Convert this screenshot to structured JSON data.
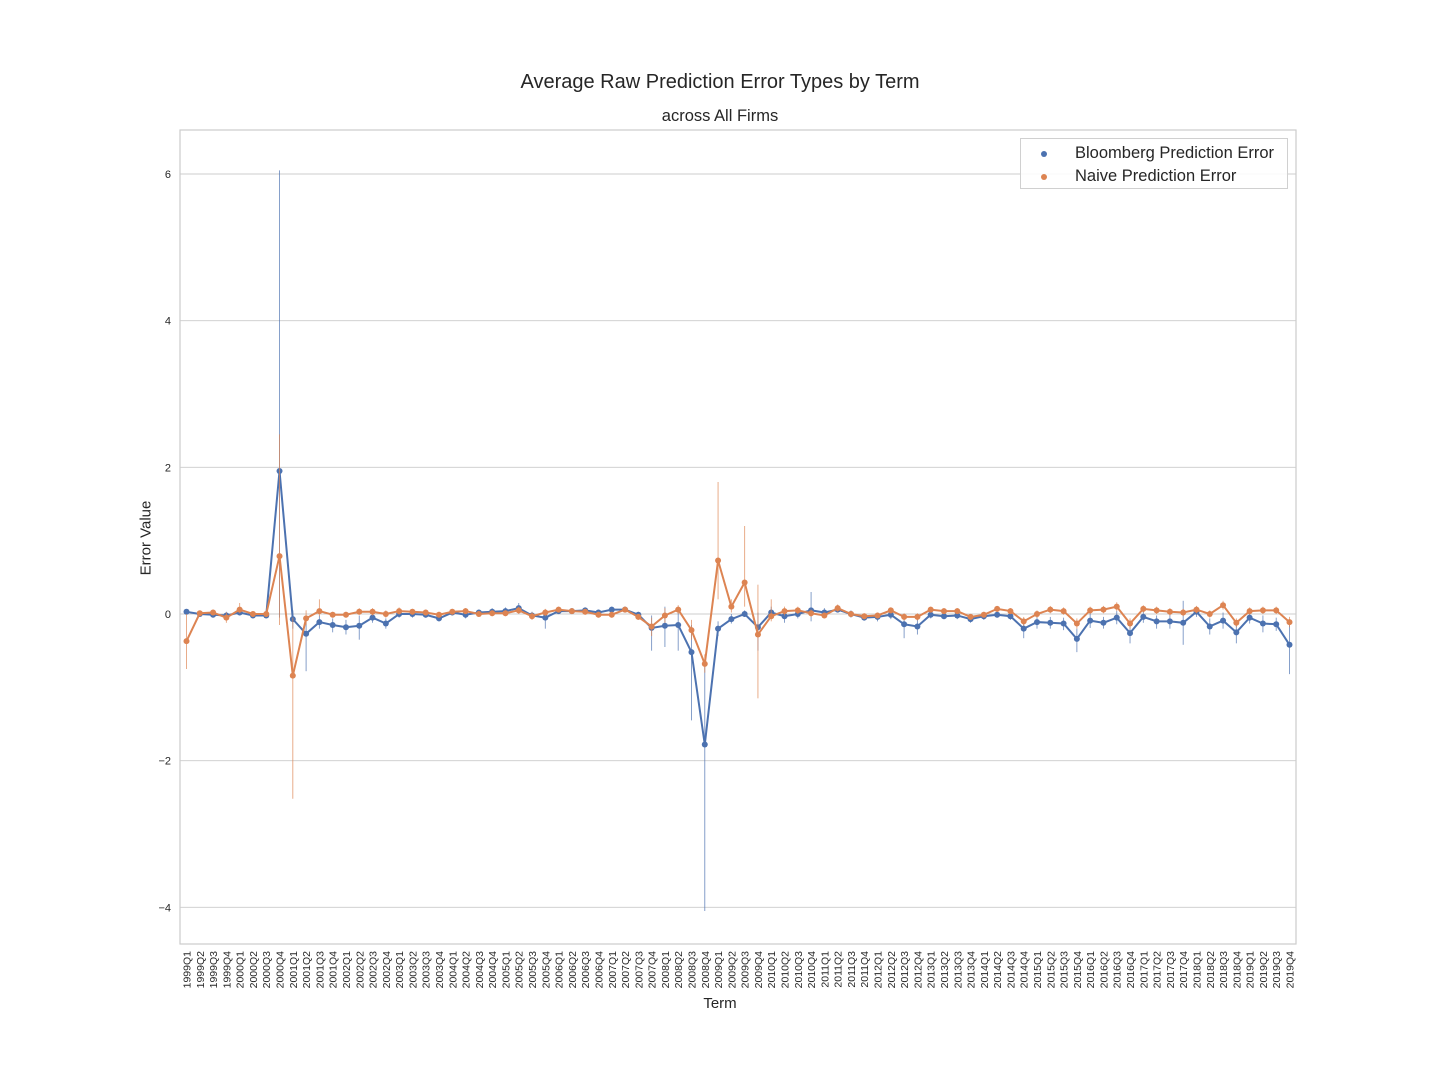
{
  "chart_data": {
    "type": "line",
    "title": "Average Raw Prediction Error Types by Term",
    "subtitle": "across All Firms",
    "xlabel": "Term",
    "ylabel": "Error Value",
    "ylim": [
      -4.5,
      6.6
    ],
    "yticks": [
      -4,
      -2,
      0,
      2,
      4,
      6
    ],
    "grid": "horizontal",
    "legend_position": "top-right",
    "categories": [
      "1999Q1",
      "1999Q2",
      "1999Q3",
      "1999Q4",
      "2000Q1",
      "2000Q2",
      "2000Q3",
      "2000Q4",
      "2001Q1",
      "2001Q2",
      "2001Q3",
      "2001Q4",
      "2002Q1",
      "2002Q2",
      "2002Q3",
      "2002Q4",
      "2003Q1",
      "2003Q2",
      "2003Q3",
      "2003Q4",
      "2004Q1",
      "2004Q2",
      "2004Q3",
      "2004Q4",
      "2005Q1",
      "2005Q2",
      "2005Q3",
      "2005Q4",
      "2006Q1",
      "2006Q2",
      "2006Q3",
      "2006Q4",
      "2007Q1",
      "2007Q2",
      "2007Q3",
      "2007Q4",
      "2008Q1",
      "2008Q2",
      "2008Q3",
      "2008Q4",
      "2009Q1",
      "2009Q2",
      "2009Q3",
      "2009Q4",
      "2010Q1",
      "2010Q2",
      "2010Q3",
      "2010Q4",
      "2011Q1",
      "2011Q2",
      "2011Q3",
      "2011Q4",
      "2012Q1",
      "2012Q2",
      "2012Q3",
      "2012Q4",
      "2013Q1",
      "2013Q2",
      "2013Q3",
      "2013Q4",
      "2014Q1",
      "2014Q2",
      "2014Q3",
      "2014Q4",
      "2015Q1",
      "2015Q2",
      "2015Q3",
      "2015Q4",
      "2016Q1",
      "2016Q2",
      "2016Q3",
      "2016Q4",
      "2017Q1",
      "2017Q2",
      "2017Q3",
      "2017Q4",
      "2018Q1",
      "2018Q2",
      "2018Q3",
      "2018Q4",
      "2019Q1",
      "2019Q2",
      "2019Q3",
      "2019Q4"
    ],
    "series": [
      {
        "name": "Bloomberg Prediction Error",
        "color": "#4c72b0",
        "values": [
          0.03,
          0.0,
          -0.01,
          -0.02,
          0.02,
          -0.02,
          -0.02,
          1.95,
          -0.07,
          -0.27,
          -0.11,
          -0.15,
          -0.18,
          -0.16,
          -0.05,
          -0.13,
          0.0,
          0.0,
          -0.01,
          -0.06,
          0.02,
          -0.01,
          0.02,
          0.03,
          0.04,
          0.08,
          -0.02,
          -0.05,
          0.04,
          0.04,
          0.05,
          0.02,
          0.06,
          0.06,
          -0.01,
          -0.19,
          -0.16,
          -0.15,
          -0.52,
          -1.78,
          -0.2,
          -0.07,
          0.0,
          -0.18,
          0.02,
          -0.03,
          0.0,
          0.05,
          0.02,
          0.06,
          0.0,
          -0.05,
          -0.04,
          -0.01,
          -0.14,
          -0.17,
          -0.01,
          -0.03,
          -0.02,
          -0.07,
          -0.03,
          -0.01,
          -0.03,
          -0.2,
          -0.11,
          -0.12,
          -0.13,
          -0.34,
          -0.09,
          -0.12,
          -0.05,
          -0.26,
          -0.04,
          -0.1,
          -0.1,
          -0.12,
          0.03,
          -0.17,
          -0.09,
          -0.25,
          -0.05,
          -0.13,
          -0.14,
          -0.42
        ],
        "error_low": [
          0.02,
          -0.03,
          -0.04,
          -0.08,
          -0.02,
          -0.05,
          -0.05,
          -0.05,
          -0.2,
          -0.78,
          -0.2,
          -0.25,
          -0.28,
          -0.35,
          -0.12,
          -0.2,
          -0.05,
          -0.05,
          -0.05,
          -0.1,
          -0.02,
          -0.06,
          -0.02,
          -0.02,
          -0.01,
          0.03,
          -0.07,
          -0.2,
          0.0,
          0.01,
          0.02,
          -0.02,
          0.03,
          0.02,
          -0.06,
          -0.5,
          -0.45,
          -0.5,
          -1.45,
          -4.05,
          -0.3,
          -0.13,
          -0.04,
          -0.5,
          -0.05,
          -0.12,
          -0.06,
          -0.1,
          -0.04,
          0.02,
          -0.05,
          -0.09,
          -0.1,
          -0.07,
          -0.33,
          -0.28,
          -0.06,
          -0.07,
          -0.07,
          -0.12,
          -0.08,
          -0.05,
          -0.08,
          -0.33,
          -0.2,
          -0.2,
          -0.22,
          -0.52,
          -0.19,
          -0.2,
          -0.14,
          -0.4,
          -0.12,
          -0.2,
          -0.2,
          -0.42,
          -0.04,
          -0.28,
          -0.2,
          -0.4,
          -0.13,
          -0.25,
          -0.23,
          -0.82
        ],
        "error_high": [
          0.05,
          0.03,
          0.02,
          0.03,
          0.06,
          0.01,
          0.02,
          6.05,
          0.05,
          -0.04,
          -0.02,
          -0.06,
          -0.08,
          -0.02,
          0.02,
          -0.06,
          0.05,
          0.04,
          0.03,
          -0.02,
          0.06,
          0.04,
          0.06,
          0.08,
          0.09,
          0.15,
          0.03,
          0.06,
          0.08,
          0.07,
          0.09,
          0.06,
          0.1,
          0.1,
          0.03,
          -0.02,
          0.1,
          0.1,
          -0.15,
          -0.65,
          -0.1,
          0.0,
          0.05,
          0.02,
          0.1,
          0.05,
          0.06,
          0.3,
          0.08,
          0.12,
          0.05,
          -0.01,
          0.02,
          0.05,
          -0.03,
          -0.06,
          0.04,
          0.02,
          0.03,
          -0.02,
          0.02,
          0.03,
          0.02,
          -0.1,
          -0.04,
          -0.04,
          -0.05,
          -0.2,
          0.01,
          -0.04,
          0.04,
          -0.12,
          0.04,
          -0.02,
          0.0,
          0.18,
          0.1,
          -0.06,
          0.02,
          -0.1,
          0.03,
          -0.02,
          -0.05,
          -0.15
        ]
      },
      {
        "name": "Naive Prediction Error",
        "color": "#dd8452",
        "values": [
          -0.37,
          0.01,
          0.02,
          -0.05,
          0.06,
          0.0,
          0.0,
          0.79,
          -0.84,
          -0.06,
          0.04,
          -0.01,
          -0.01,
          0.03,
          0.03,
          0.0,
          0.04,
          0.03,
          0.02,
          -0.01,
          0.03,
          0.04,
          0.0,
          0.01,
          0.01,
          0.05,
          -0.03,
          0.02,
          0.06,
          0.04,
          0.03,
          -0.01,
          -0.01,
          0.06,
          -0.04,
          -0.17,
          -0.02,
          0.06,
          -0.22,
          -0.68,
          0.73,
          0.1,
          0.43,
          -0.28,
          -0.03,
          0.04,
          0.05,
          0.01,
          -0.02,
          0.08,
          0.0,
          -0.03,
          -0.02,
          0.05,
          -0.04,
          -0.04,
          0.06,
          0.04,
          0.04,
          -0.04,
          -0.01,
          0.07,
          0.04,
          -0.1,
          0.0,
          0.06,
          0.04,
          -0.13,
          0.05,
          0.06,
          0.1,
          -0.13,
          0.07,
          0.05,
          0.03,
          0.02,
          0.06,
          0.0,
          0.12,
          -0.12,
          0.04,
          0.05,
          0.05,
          -0.11
        ],
        "error_low": [
          -0.75,
          -0.02,
          -0.02,
          -0.12,
          0.01,
          -0.04,
          -0.04,
          -0.15,
          -2.52,
          -0.15,
          -0.03,
          -0.05,
          -0.05,
          -0.01,
          -0.02,
          -0.05,
          -0.01,
          -0.01,
          -0.02,
          -0.05,
          -0.01,
          0.0,
          -0.04,
          -0.03,
          -0.03,
          0.0,
          -0.08,
          -0.03,
          0.02,
          0.0,
          -0.01,
          -0.05,
          -0.05,
          0.02,
          -0.08,
          -0.3,
          -0.12,
          0.0,
          -0.35,
          -0.8,
          0.2,
          0.02,
          0.1,
          -1.15,
          -0.1,
          -0.02,
          0.0,
          -0.04,
          -0.06,
          0.03,
          -0.04,
          -0.07,
          -0.06,
          0.01,
          -0.09,
          -0.09,
          0.02,
          0.0,
          0.0,
          -0.08,
          -0.05,
          0.03,
          0.0,
          -0.16,
          -0.05,
          0.01,
          -0.01,
          -0.2,
          0.0,
          0.01,
          0.04,
          -0.2,
          0.02,
          0.0,
          -0.02,
          -0.03,
          0.01,
          -0.05,
          0.06,
          -0.18,
          -0.01,
          0.0,
          0.0,
          -0.18
        ],
        "error_high": [
          0.0,
          0.04,
          0.06,
          0.02,
          0.15,
          0.04,
          0.04,
          2.45,
          -0.05,
          0.05,
          0.2,
          0.03,
          0.03,
          0.08,
          0.08,
          0.05,
          0.09,
          0.07,
          0.06,
          0.03,
          0.07,
          0.08,
          0.04,
          0.05,
          0.05,
          0.1,
          0.02,
          0.07,
          0.1,
          0.08,
          0.07,
          0.03,
          0.03,
          0.1,
          0.0,
          -0.05,
          0.08,
          0.12,
          -0.08,
          -0.55,
          1.8,
          0.2,
          1.2,
          0.4,
          0.2,
          0.1,
          0.1,
          0.06,
          0.02,
          0.13,
          0.04,
          0.01,
          0.02,
          0.09,
          0.01,
          0.01,
          0.1,
          0.08,
          0.08,
          0.0,
          0.03,
          0.11,
          0.08,
          -0.04,
          0.05,
          0.11,
          0.09,
          -0.06,
          0.1,
          0.11,
          0.16,
          -0.06,
          0.12,
          0.1,
          0.08,
          0.07,
          0.11,
          0.05,
          0.18,
          -0.06,
          0.09,
          0.1,
          0.1,
          -0.04
        ]
      }
    ]
  }
}
